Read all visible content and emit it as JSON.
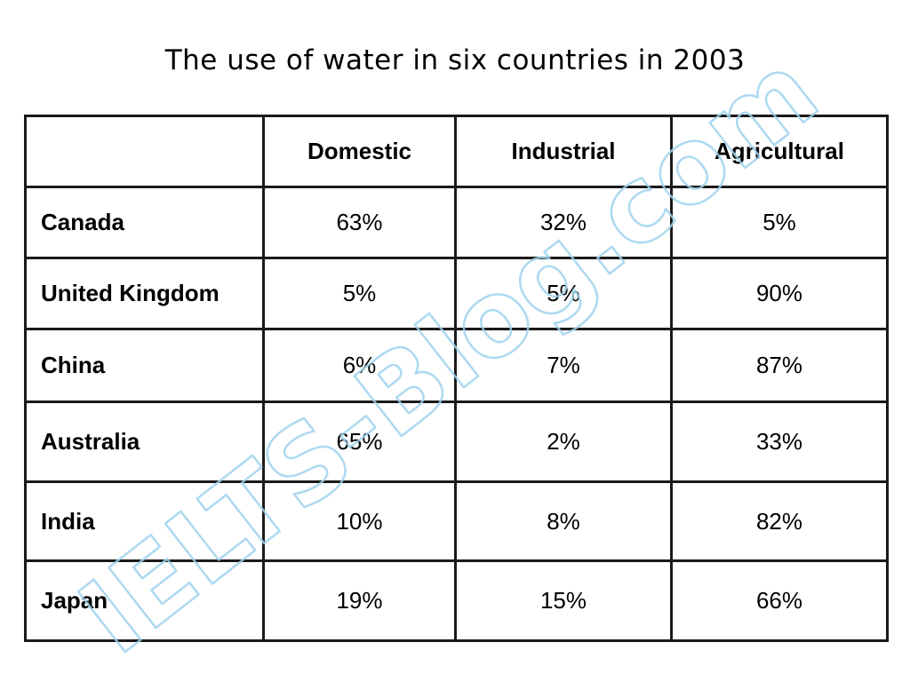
{
  "title": "The use of water in six countries in 2003",
  "watermark": "IELTS-Blog.com",
  "colors": {
    "border": "#1a1a1a",
    "text": "#000000",
    "watermark": "#9fd3ee"
  },
  "chart_data": {
    "type": "table",
    "title": "The use of water in six countries in 2003",
    "columns": [
      "",
      "Domestic",
      "Industrial",
      "Agricultural"
    ],
    "rows": [
      {
        "country": "Canada",
        "domestic": "63%",
        "industrial": "32%",
        "agricultural": "5%"
      },
      {
        "country": "United Kingdom",
        "domestic": "5%",
        "industrial": "5%",
        "agricultural": "90%"
      },
      {
        "country": "China",
        "domestic": "6%",
        "industrial": "7%",
        "agricultural": "87%"
      },
      {
        "country": "Australia",
        "domestic": "65%",
        "industrial": "2%",
        "agricultural": "33%"
      },
      {
        "country": "India",
        "domestic": "10%",
        "industrial": "8%",
        "agricultural": "82%"
      },
      {
        "country": "Japan",
        "domestic": "19%",
        "industrial": "15%",
        "agricultural": "66%"
      }
    ]
  }
}
